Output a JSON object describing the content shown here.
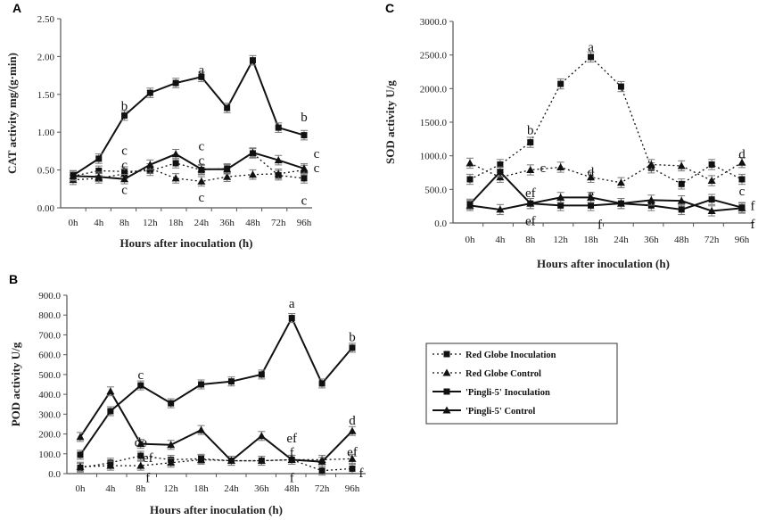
{
  "legend": {
    "entries": [
      "Red Globe Inoculation",
      "Red Globe Control",
      "'Pingli-5' Inoculation",
      "'Pingli-5' Control"
    ]
  },
  "chart_data": [
    {
      "panel": "A",
      "type": "line",
      "title": "",
      "xlabel": "Hours after inoculation (h)",
      "ylabel": "CAT activity mg/(g·min)",
      "categories": [
        "0h",
        "4h",
        "8h",
        "12h",
        "18h",
        "24h",
        "36h",
        "48h",
        "72h",
        "96h"
      ],
      "ylim": [
        0,
        2.5
      ],
      "yticks": [
        "0.00",
        "0.50",
        "1.00",
        "1.50",
        "2.00",
        "2.50"
      ],
      "series": [
        {
          "name": "Red Globe Inoculation",
          "marker": "square",
          "style": "dotted",
          "values": [
            0.42,
            0.49,
            0.48,
            0.49,
            0.59,
            0.5,
            0.52,
            0.72,
            0.43,
            0.39
          ]
        },
        {
          "name": "Red Globe Control",
          "marker": "triangle",
          "style": "dotted",
          "values": [
            0.37,
            0.39,
            0.45,
            0.52,
            0.39,
            0.35,
            0.41,
            0.44,
            0.45,
            0.5
          ]
        },
        {
          "name": "'Pingli-5' Inoculation",
          "marker": "square",
          "style": "solid",
          "values": [
            0.43,
            0.65,
            1.22,
            1.52,
            1.65,
            1.73,
            1.32,
            1.95,
            1.06,
            0.96
          ]
        },
        {
          "name": "'Pingli-5' Control",
          "marker": "triangle",
          "style": "solid",
          "values": [
            0.42,
            0.41,
            0.38,
            0.57,
            0.71,
            0.51,
            0.51,
            0.73,
            0.63,
            0.52
          ]
        }
      ],
      "annotations": [
        {
          "category": "8h",
          "value": 1.35,
          "text": "b"
        },
        {
          "category": "24h",
          "value": 1.83,
          "text": "a"
        },
        {
          "category": "96h",
          "value": 1.2,
          "text": "b"
        },
        {
          "category": "8h",
          "value": 0.76,
          "text": "c"
        },
        {
          "category": "8h",
          "value": 0.6,
          "text": "c"
        },
        {
          "category": "8h",
          "value": 0.24,
          "text": "c"
        },
        {
          "category": "24h",
          "value": 0.82,
          "text": "c"
        },
        {
          "category": "24h",
          "value": 0.7,
          "text": "c"
        },
        {
          "category": "24h",
          "value": 0.14,
          "text": "c"
        },
        {
          "category": "96h",
          "value": 0.72,
          "text": "c",
          "dx": 14
        },
        {
          "category": "96h",
          "value": 0.6,
          "text": "c",
          "dx": 14
        },
        {
          "category": "96h",
          "value": 0.1,
          "text": "c"
        }
      ]
    },
    {
      "panel": "C",
      "type": "line",
      "title": "",
      "xlabel": "Hours after inoculation (h)",
      "ylabel": "SOD activity U/g",
      "categories": [
        "0h",
        "4h",
        "8h",
        "12h",
        "18h",
        "24h",
        "36h",
        "48h",
        "72h",
        "96h"
      ],
      "ylim": [
        0,
        3000
      ],
      "yticks": [
        "0.0",
        "500.0",
        "1000.0",
        "1500.0",
        "2000.0",
        "2500.0",
        "3000.0"
      ],
      "series": [
        {
          "name": "Red Globe Inoculation",
          "marker": "square",
          "style": "dotted",
          "values": [
            650,
            870,
            1200,
            2070,
            2470,
            2030,
            820,
            580,
            870,
            650
          ]
        },
        {
          "name": "Red Globe Control",
          "marker": "triangle",
          "style": "dotted",
          "values": [
            890,
            680,
            790,
            830,
            680,
            600,
            870,
            850,
            630,
            900
          ]
        },
        {
          "name": "'Pingli-5' Inoculation",
          "marker": "square",
          "style": "solid",
          "values": [
            280,
            760,
            290,
            260,
            260,
            290,
            260,
            200,
            350,
            230
          ]
        },
        {
          "name": "'Pingli-5' Control",
          "marker": "triangle",
          "style": "solid",
          "values": [
            260,
            200,
            290,
            380,
            380,
            290,
            340,
            330,
            180,
            220
          ]
        }
      ],
      "annotations": [
        {
          "category": "8h",
          "value": 1390,
          "text": "b"
        },
        {
          "category": "18h",
          "value": 2620,
          "text": "a"
        },
        {
          "category": "8h",
          "value": 820,
          "text": "c",
          "dx": 14
        },
        {
          "category": "18h",
          "value": 760,
          "text": "d"
        },
        {
          "category": "96h",
          "value": 1030,
          "text": "d"
        },
        {
          "category": "96h",
          "value": 480,
          "text": "c"
        },
        {
          "category": "8h",
          "value": 450,
          "text": "ef"
        },
        {
          "category": "8h",
          "value": 30,
          "text": "ef"
        },
        {
          "category": "18h",
          "value": 430,
          "text": "e"
        },
        {
          "category": "18h",
          "value": -20,
          "text": "f",
          "dx": 10
        },
        {
          "category": "96h",
          "value": 260,
          "text": "f",
          "dx": 12
        },
        {
          "category": "96h",
          "value": -10,
          "text": "f",
          "dx": 12
        }
      ]
    },
    {
      "panel": "B",
      "type": "line",
      "title": "",
      "xlabel": "Hours after inoculation (h)",
      "ylabel": "POD activity U/g",
      "categories": [
        "0h",
        "4h",
        "8h",
        "12h",
        "18h",
        "24h",
        "36h",
        "48h",
        "72h",
        "96h"
      ],
      "ylim": [
        0,
        900
      ],
      "yticks": [
        "0.0",
        "100.0",
        "200.0",
        "300.0",
        "400.0",
        "500.0",
        "600.0",
        "700.0",
        "800.0",
        "900.0"
      ],
      "series": [
        {
          "name": "Red Globe Inoculation",
          "marker": "square",
          "style": "dotted",
          "values": [
            30,
            55,
            90,
            70,
            75,
            65,
            65,
            70,
            15,
            25
          ]
        },
        {
          "name": "Red Globe Control",
          "marker": "triangle",
          "style": "dotted",
          "values": [
            35,
            40,
            40,
            55,
            70,
            65,
            65,
            70,
            70,
            75
          ]
        },
        {
          "name": "'Pingli-5' Inoculation",
          "marker": "square",
          "style": "solid",
          "values": [
            95,
            315,
            445,
            355,
            450,
            465,
            500,
            785,
            455,
            635
          ]
        },
        {
          "name": "'Pingli-5' Control",
          "marker": "triangle",
          "style": "solid",
          "values": [
            185,
            415,
            150,
            145,
            220,
            65,
            190,
            70,
            60,
            215
          ]
        }
      ],
      "annotations": [
        {
          "category": "8h",
          "value": 500,
          "text": "c"
        },
        {
          "category": "48h",
          "value": 860,
          "text": "a"
        },
        {
          "category": "96h",
          "value": 690,
          "text": "b"
        },
        {
          "category": "8h",
          "value": 160,
          "text": "de"
        },
        {
          "category": "8h",
          "value": 80,
          "text": "ef",
          "dx": 8
        },
        {
          "category": "8h",
          "value": -20,
          "text": "f",
          "dx": 8
        },
        {
          "category": "48h",
          "value": 180,
          "text": "ef"
        },
        {
          "category": "48h",
          "value": 110,
          "text": "f"
        },
        {
          "category": "48h",
          "value": -20,
          "text": "f"
        },
        {
          "category": "96h",
          "value": 270,
          "text": "d"
        },
        {
          "category": "96h",
          "value": 110,
          "text": "ef"
        },
        {
          "category": "96h",
          "value": 5,
          "text": "f",
          "dx": 10
        }
      ]
    }
  ]
}
